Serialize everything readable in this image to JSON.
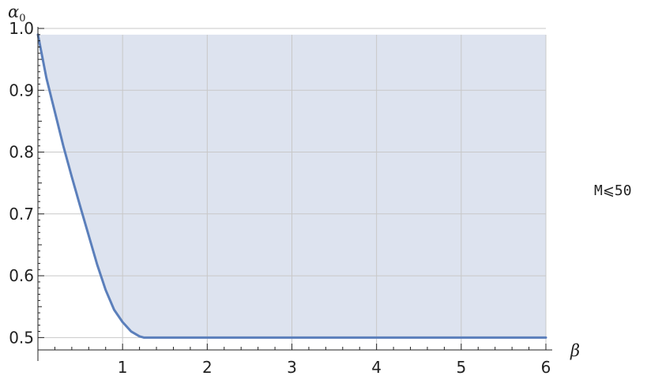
{
  "chart_data": {
    "type": "area",
    "xlabel": "β",
    "ylabel_main": "α",
    "ylabel_sub": "0",
    "side_label": "M⩽50",
    "xlim": [
      0,
      6
    ],
    "ylim": [
      0.48,
      1.0
    ],
    "xticks": [
      {
        "value": 1,
        "label": "1"
      },
      {
        "value": 2,
        "label": "2"
      },
      {
        "value": 3,
        "label": "3"
      },
      {
        "value": 4,
        "label": "4"
      },
      {
        "value": 5,
        "label": "5"
      },
      {
        "value": 6,
        "label": "6"
      }
    ],
    "yticks": [
      {
        "value": 0.5,
        "label": "0.5"
      },
      {
        "value": 0.6,
        "label": "0.6"
      },
      {
        "value": 0.7,
        "label": "0.7"
      },
      {
        "value": 0.8,
        "label": "0.8"
      },
      {
        "value": 0.9,
        "label": "0.9"
      },
      {
        "value": 1.0,
        "label": "1.0"
      }
    ],
    "grid": true,
    "region_top": 0.99,
    "series": [
      {
        "x": [
          0.0,
          0.05,
          0.1,
          0.2,
          0.3,
          0.4,
          0.5,
          0.6,
          0.7,
          0.8,
          0.9,
          1.0,
          1.1,
          1.2,
          1.25,
          1.5,
          2.0,
          3.0,
          4.0,
          5.0,
          6.0
        ],
        "y": [
          0.99,
          0.955,
          0.92,
          0.865,
          0.81,
          0.76,
          0.712,
          0.665,
          0.618,
          0.577,
          0.545,
          0.525,
          0.51,
          0.502,
          0.5,
          0.5,
          0.5,
          0.5,
          0.5,
          0.5,
          0.5
        ]
      }
    ],
    "colors": {
      "line": "#5b7fbb",
      "fill": "#dde3ef",
      "grid": "#c8c8c8",
      "axis": "#222222"
    }
  }
}
